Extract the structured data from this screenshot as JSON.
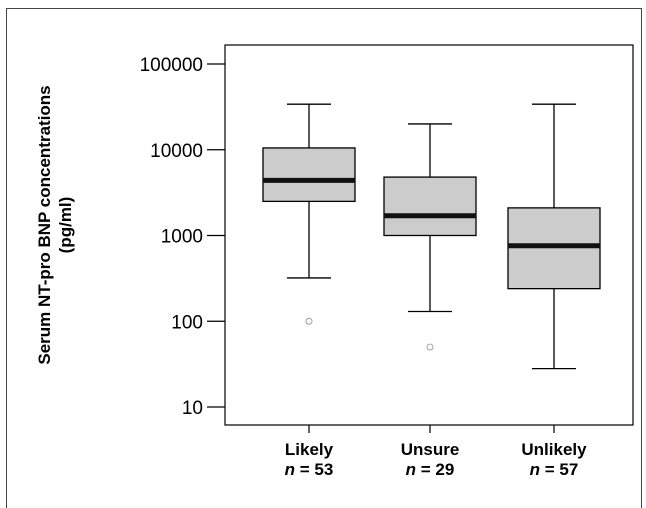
{
  "chart_data": {
    "type": "box",
    "ylabel_line1": "Serum NT-pro BNP concentrations",
    "ylabel_line2": "(pg/ml)",
    "yscale": "log",
    "ylim": [
      10,
      100000
    ],
    "yticks": [
      "10",
      "100",
      "1000",
      "10000",
      "100000"
    ],
    "ytick_values": [
      10,
      100,
      1000,
      10000,
      100000
    ],
    "grid": false,
    "box_color": "#cccccc",
    "median_color": "#111111",
    "groups": [
      {
        "label": "Likely",
        "n_symbol": "n",
        "n_text": " = 53",
        "whisker_low": 320,
        "q1": 2500,
        "median": 4400,
        "q3": 10500,
        "whisker_high": 34000,
        "outliers": [
          100
        ]
      },
      {
        "label": "Unsure",
        "n_symbol": "n",
        "n_text": " = 29",
        "whisker_low": 130,
        "q1": 1000,
        "median": 1700,
        "q3": 4800,
        "whisker_high": 20000,
        "outliers": [
          50
        ]
      },
      {
        "label": "Unlikely",
        "n_symbol": "n",
        "n_text": " = 57",
        "whisker_low": 28,
        "q1": 240,
        "median": 760,
        "q3": 2100,
        "whisker_high": 34000,
        "outliers": []
      }
    ]
  }
}
